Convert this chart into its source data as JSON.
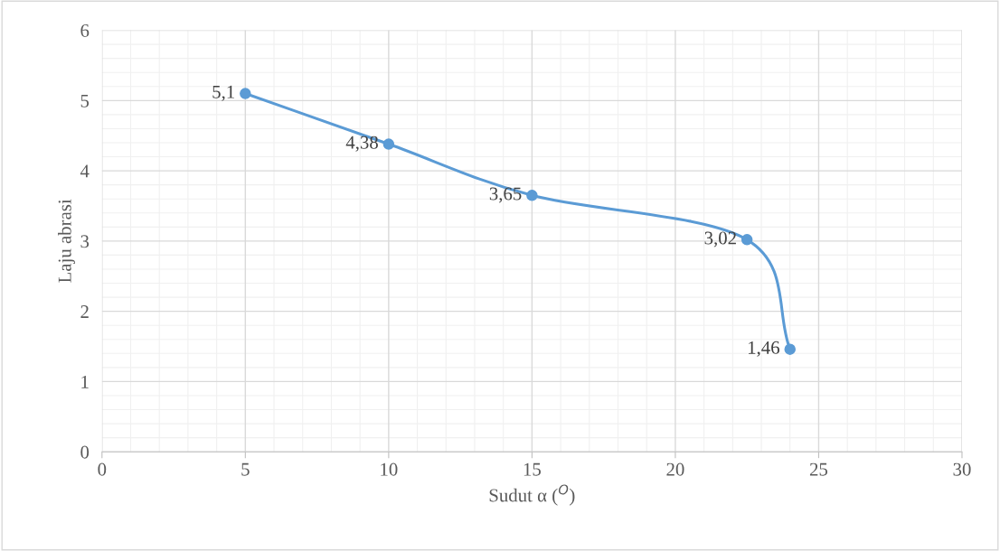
{
  "chart_data": {
    "type": "line",
    "xlabel": "Sudut α ($^{O}$)",
    "ylabel": "Laju abrasi",
    "x": [
      5,
      10,
      15,
      22.5,
      24
    ],
    "series": [
      {
        "color": "#5b9bd5",
        "values": [
          5.1,
          4.38,
          3.65,
          3.02,
          1.46
        ],
        "value_labels": [
          "5,1",
          "4,38",
          "3,65",
          "3,02",
          "1,46"
        ]
      }
    ],
    "xlim": [
      0,
      30
    ],
    "xticks": [
      0,
      5,
      10,
      15,
      20,
      25,
      30
    ],
    "ylim": [
      0,
      6
    ],
    "yticks": [
      0,
      1,
      2,
      3,
      4,
      5,
      6
    ],
    "grid": true,
    "marker": "circle",
    "line_style": "solid",
    "legend": false
  }
}
